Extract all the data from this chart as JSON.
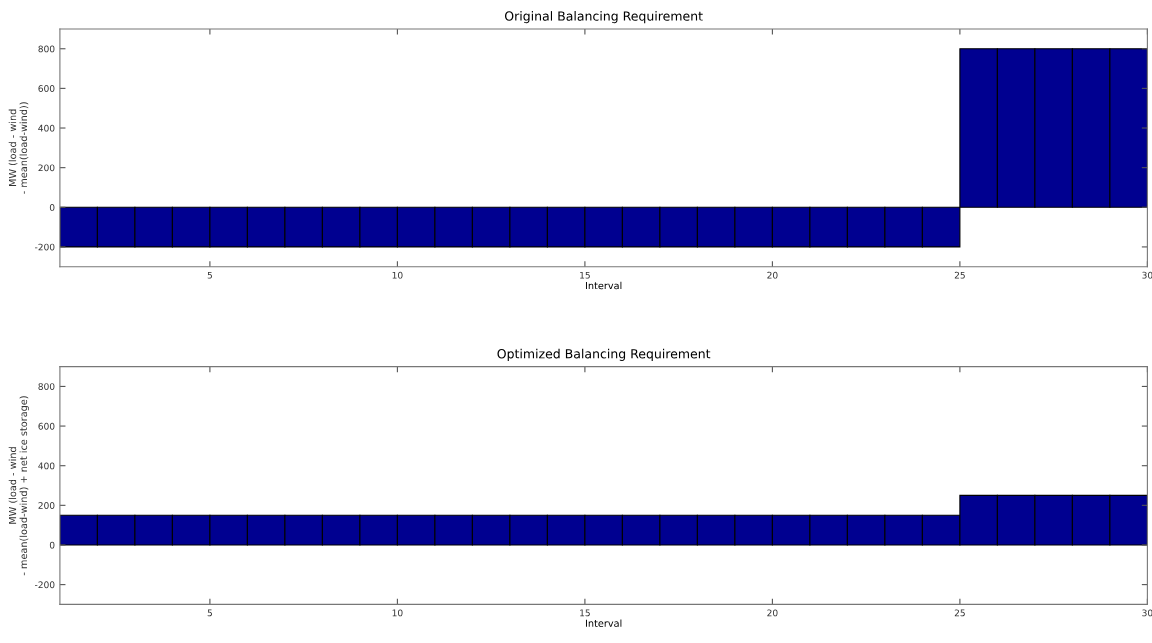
{
  "chart_data": [
    {
      "type": "histogram",
      "title": "Original Balancing Requirement",
      "xlabel": "Interval",
      "ylabel": "MW (load - wind\n- mean(load-wind))",
      "bins": [
        1,
        2,
        3,
        4,
        5,
        6,
        7,
        8,
        9,
        10,
        11,
        12,
        13,
        14,
        15,
        16,
        17,
        18,
        19,
        20,
        21,
        22,
        23,
        24,
        25,
        26,
        27,
        28,
        29,
        30
      ],
      "values": [
        -200,
        -200,
        -200,
        -200,
        -200,
        -200,
        -200,
        -200,
        -200,
        -200,
        -200,
        -200,
        -200,
        -200,
        -200,
        -200,
        -200,
        -200,
        -200,
        -200,
        -200,
        -200,
        -200,
        -200,
        800,
        800,
        800,
        800,
        800
      ],
      "color": "#000090",
      "xlim": [
        1,
        30
      ],
      "xticks": [
        5,
        10,
        15,
        20,
        25,
        30
      ],
      "ylim": [
        -300,
        900
      ],
      "yticks": [
        -200,
        0,
        200,
        400,
        600,
        800
      ],
      "grid": false,
      "legend": false
    },
    {
      "type": "histogram",
      "title": "Optimized Balancing Requirement",
      "xlabel": "Interval",
      "ylabel": "MW (load - wind\n- mean(load-wind) + net ice storage)",
      "bins": [
        1,
        2,
        3,
        4,
        5,
        6,
        7,
        8,
        9,
        10,
        11,
        12,
        13,
        14,
        15,
        16,
        17,
        18,
        19,
        20,
        21,
        22,
        23,
        24,
        25,
        26,
        27,
        28,
        29,
        30
      ],
      "values": [
        150,
        150,
        150,
        150,
        150,
        150,
        150,
        150,
        150,
        150,
        150,
        150,
        150,
        150,
        150,
        150,
        150,
        150,
        150,
        150,
        150,
        150,
        150,
        150,
        250,
        250,
        250,
        250,
        250
      ],
      "color": "#000090",
      "xlim": [
        1,
        30
      ],
      "xticks": [
        5,
        10,
        15,
        20,
        25,
        30
      ],
      "ylim": [
        -300,
        900
      ],
      "yticks": [
        -200,
        0,
        200,
        400,
        600,
        800
      ],
      "grid": false,
      "legend": false
    }
  ]
}
